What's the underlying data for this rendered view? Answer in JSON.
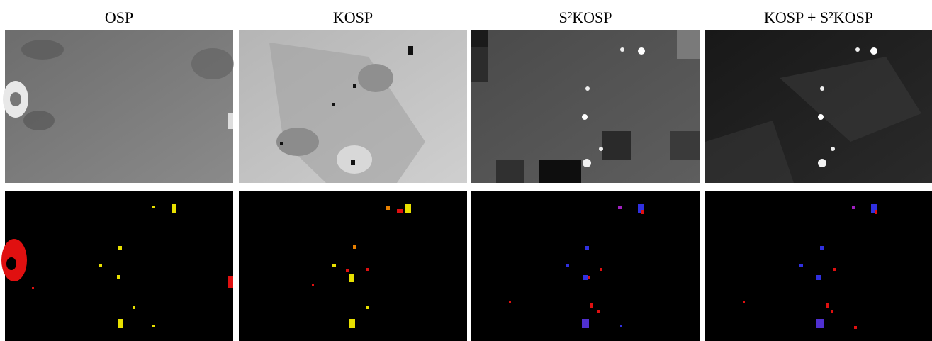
{
  "figure": {
    "columns": [
      "OSP",
      "KOSP",
      "S²KOSP",
      "KOSP + S²KOSP"
    ]
  }
}
